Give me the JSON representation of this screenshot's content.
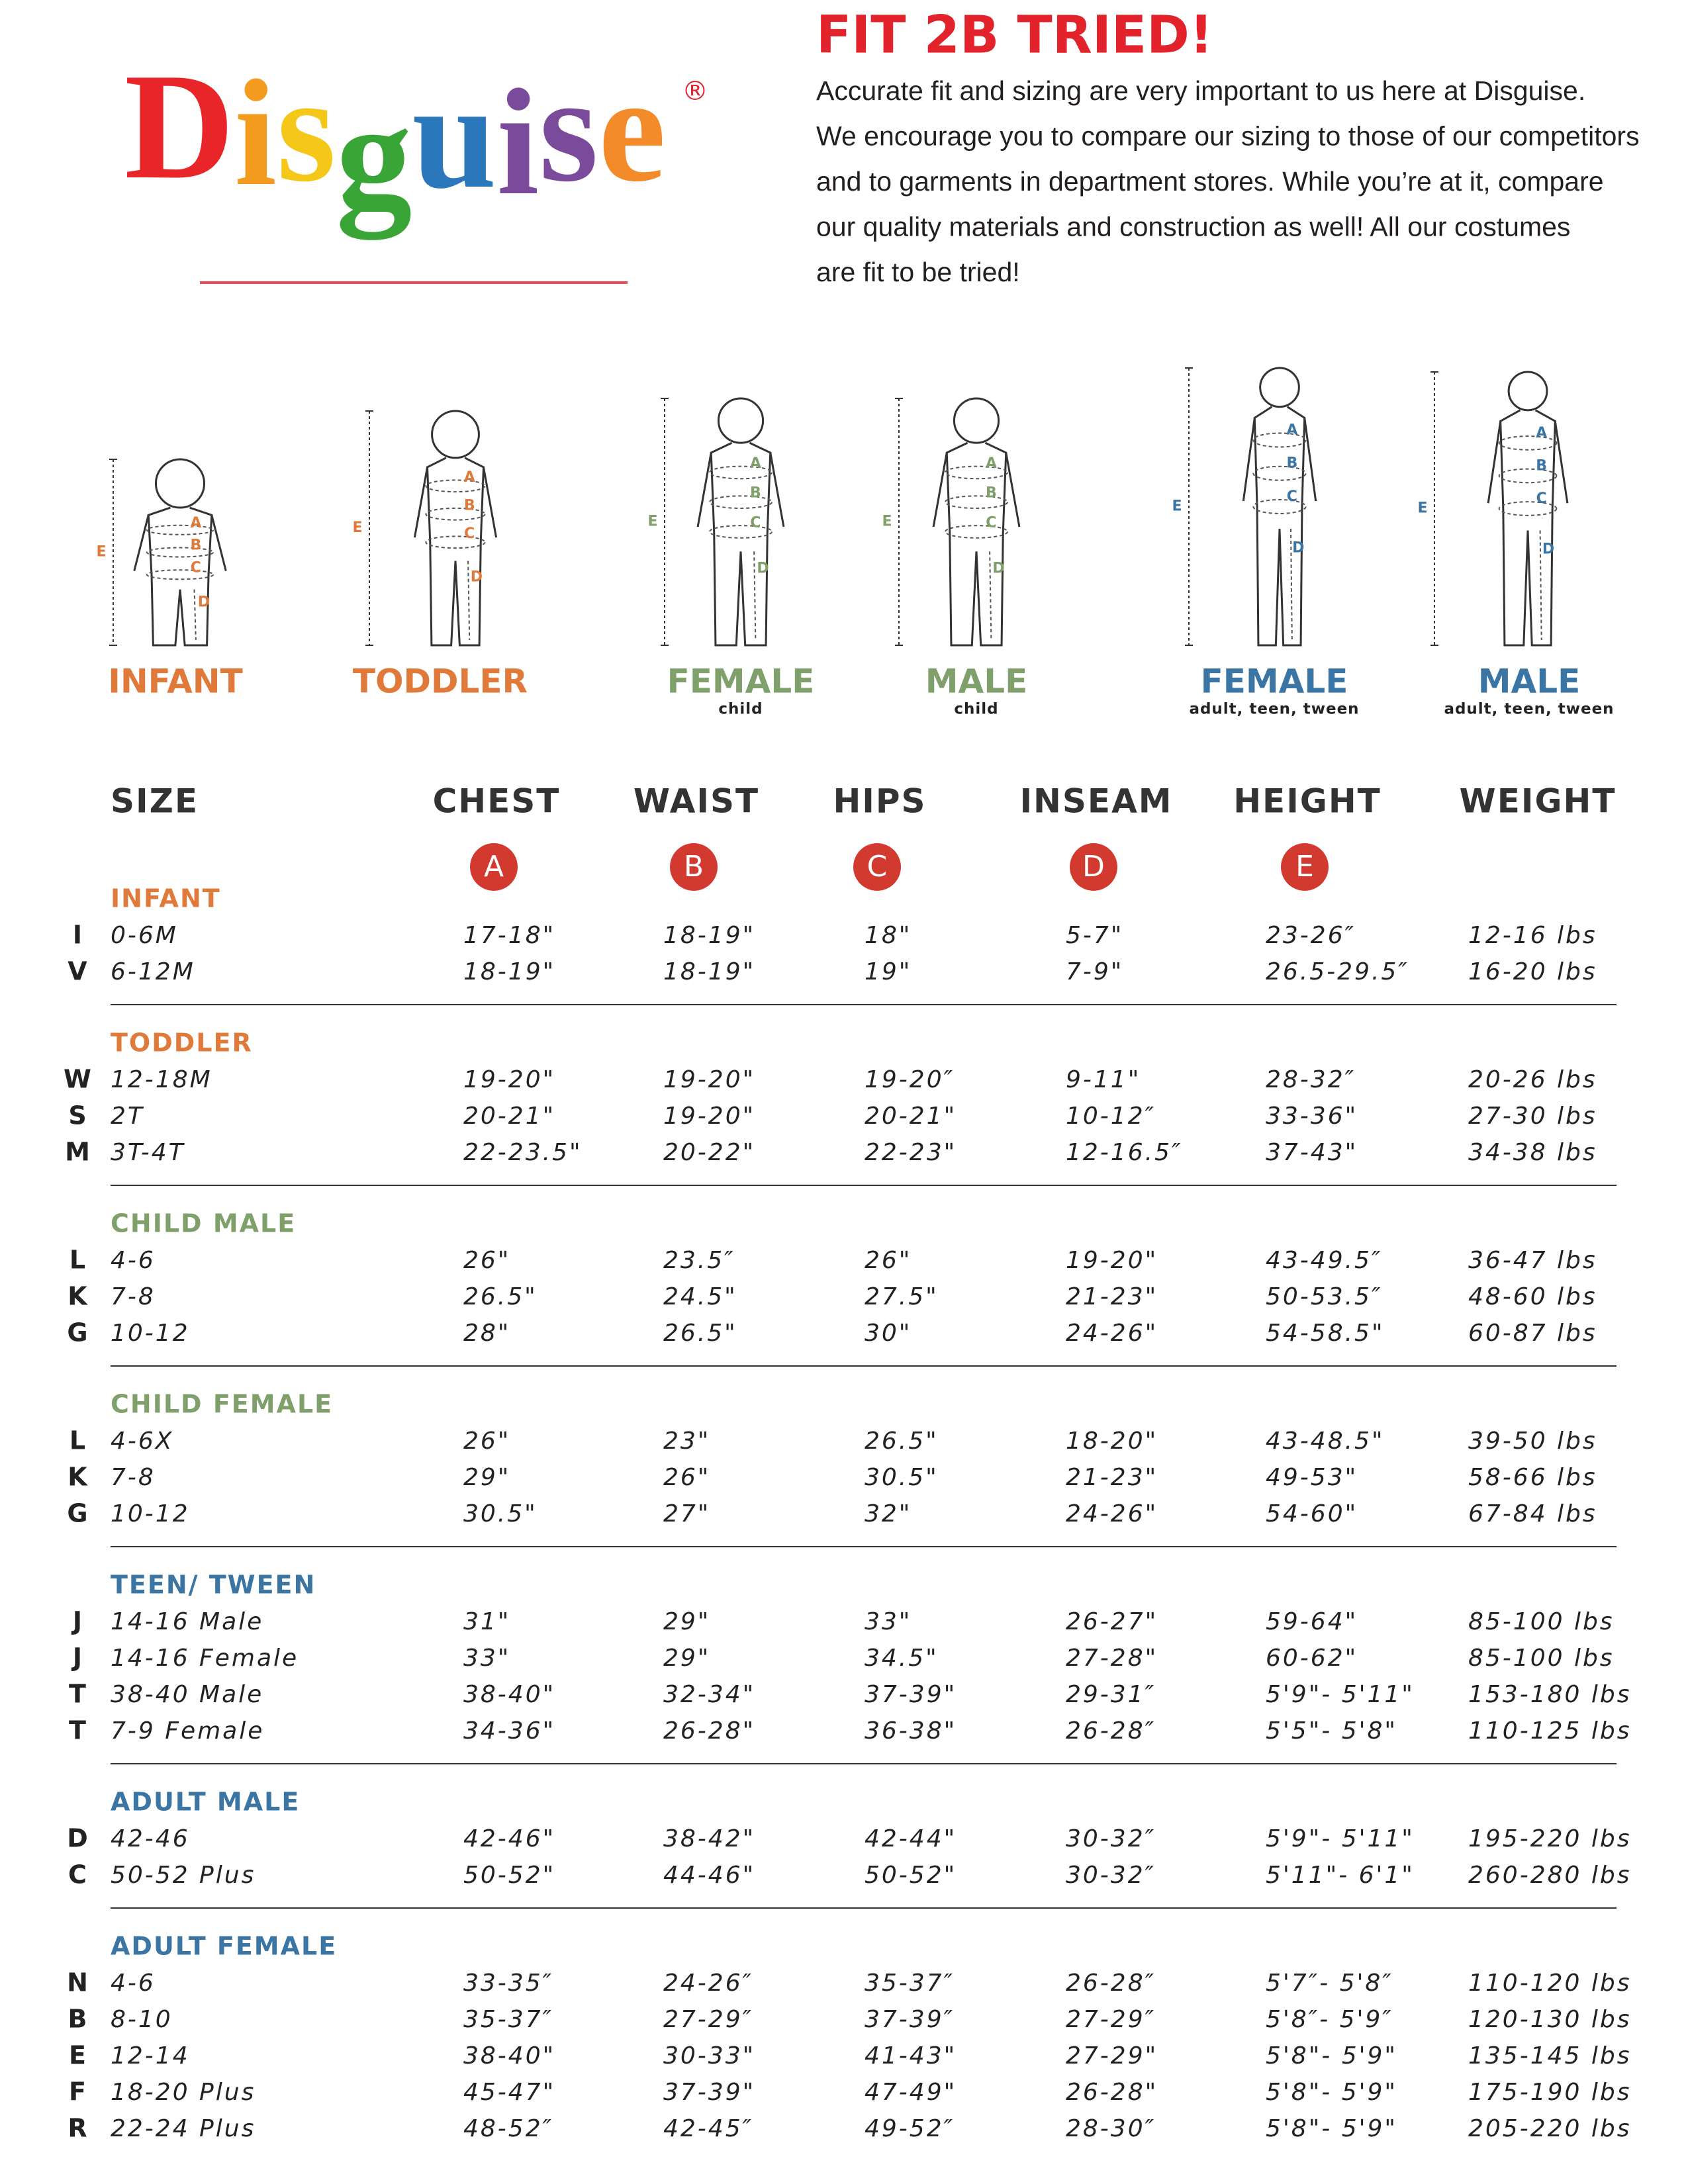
{
  "header": {
    "logo": "Disguise",
    "registered": "®",
    "title": "FIT 2B TRIED!",
    "paragraph": [
      "Accurate fit and sizing are very important to us here at Disguise.",
      "We encourage you to compare our sizing to those of our competitors",
      "and to garments in department stores. While you’re at it, compare",
      "our quality materials and construction as well! All our costumes",
      "are fit to be tried!"
    ]
  },
  "figures": [
    {
      "label": "INFANT",
      "letters": [
        "A",
        "B",
        "C",
        "D",
        "E"
      ]
    },
    {
      "label": "TODDLER",
      "letters": [
        "A",
        "B",
        "C",
        "D",
        "E"
      ]
    },
    {
      "label": "FEMALE",
      "sub": "child",
      "letters": [
        "A",
        "B",
        "C",
        "D",
        "E"
      ]
    },
    {
      "label": "MALE",
      "sub": "child",
      "letters": [
        "A",
        "B",
        "C",
        "D",
        "E"
      ]
    },
    {
      "label": "FEMALE",
      "sub": "adult, teen, tween",
      "letters": [
        "A",
        "B",
        "C",
        "D",
        "E"
      ]
    },
    {
      "label": "MALE",
      "sub": "adult, teen, tween",
      "letters": [
        "A",
        "B",
        "C",
        "D",
        "E"
      ]
    }
  ],
  "table": {
    "columns": [
      "SIZE",
      "CHEST",
      "WAIST",
      "HIPS",
      "INSEAM",
      "HEIGHT",
      "WEIGHT"
    ],
    "markers": [
      "A",
      "B",
      "C",
      "D",
      "E"
    ],
    "sections": [
      {
        "title": "INFANT",
        "rows": [
          [
            "I",
            "0-6M",
            "17-18\"",
            "18-19\"",
            "18\"",
            "5-7\"",
            "23-26″",
            "12-16 lbs"
          ],
          [
            "V",
            "6-12M",
            "18-19\"",
            "18-19\"",
            "19\"",
            "7-9\"",
            "26.5-29.5″",
            "16-20 lbs"
          ]
        ]
      },
      {
        "title": "TODDLER",
        "rows": [
          [
            "W",
            "12-18M",
            "19-20\"",
            "19-20\"",
            "19-20″",
            "9-11\"",
            "28-32″",
            "20-26 lbs"
          ],
          [
            "S",
            "2T",
            "20-21\"",
            "19-20\"",
            "20-21\"",
            "10-12″",
            "33-36\"",
            "27-30 lbs"
          ],
          [
            "M",
            "3T-4T",
            "22-23.5\"",
            "20-22\"",
            "22-23\"",
            "12-16.5″",
            "37-43\"",
            "34-38 lbs"
          ]
        ]
      },
      {
        "title": "CHILD MALE",
        "rows": [
          [
            "L",
            "4-6",
            "26\"",
            "23.5″",
            "26\"",
            "19-20\"",
            "43-49.5″",
            "36-47 lbs"
          ],
          [
            "K",
            "7-8",
            "26.5\"",
            "24.5\"",
            "27.5\"",
            "21-23\"",
            "50-53.5″",
            "48-60 lbs"
          ],
          [
            "G",
            "10-12",
            "28\"",
            "26.5\"",
            "30\"",
            "24-26\"",
            "54-58.5\"",
            "60-87 lbs"
          ]
        ]
      },
      {
        "title": "CHILD FEMALE",
        "rows": [
          [
            "L",
            "4-6X",
            "26\"",
            "23\"",
            "26.5\"",
            "18-20\"",
            "43-48.5\"",
            "39-50 lbs"
          ],
          [
            "K",
            "7-8",
            "29\"",
            "26\"",
            "30.5\"",
            "21-23\"",
            "49-53\"",
            "58-66 lbs"
          ],
          [
            "G",
            "10-12",
            "30.5\"",
            "27\"",
            "32\"",
            "24-26\"",
            "54-60\"",
            "67-84 lbs"
          ]
        ]
      },
      {
        "title": "TEEN/ TWEEN",
        "rows": [
          [
            "J",
            "14-16 Male",
            "31\"",
            "29\"",
            "33\"",
            "26-27\"",
            "59-64\"",
            "85-100 lbs"
          ],
          [
            "J",
            "14-16 Female",
            "33\"",
            "29\"",
            "34.5\"",
            "27-28\"",
            "60-62\"",
            "85-100 lbs"
          ],
          [
            "T",
            "38-40 Male",
            "38-40\"",
            "32-34\"",
            "37-39\"",
            "29-31″",
            "5'9\"- 5'11\"",
            "153-180 lbs"
          ],
          [
            "T",
            "7-9 Female",
            "34-36\"",
            "26-28\"",
            "36-38\"",
            "26-28″",
            "5'5\"- 5'8\"",
            "110-125 lbs"
          ]
        ]
      },
      {
        "title": "ADULT MALE",
        "rows": [
          [
            "D",
            "42-46",
            "42-46\"",
            "38-42\"",
            "42-44\"",
            "30-32″",
            "5'9\"- 5'11\"",
            "195-220 lbs"
          ],
          [
            "C",
            "50-52 Plus",
            "50-52\"",
            "44-46\"",
            "50-52\"",
            "30-32″",
            "5'11\"- 6'1\"",
            "260-280 lbs"
          ]
        ]
      },
      {
        "title": "ADULT FEMALE",
        "rows": [
          [
            "N",
            "4-6",
            "33-35″",
            "24-26″",
            "35-37″",
            "26-28″",
            "5'7″- 5'8″",
            "110-120 lbs"
          ],
          [
            "B",
            "8-10",
            "35-37″",
            "27-29″",
            "37-39″",
            "27-29″",
            "5'8″- 5'9″",
            "120-130 lbs"
          ],
          [
            "E",
            "12-14",
            "38-40\"",
            "30-33\"",
            "41-43\"",
            "27-29\"",
            "5'8\"- 5'9\"",
            "135-145 lbs"
          ],
          [
            "F",
            "18-20 Plus",
            "45-47\"",
            "37-39\"",
            "47-49\"",
            "26-28\"",
            "5'8\"- 5'9\"",
            "175-190 lbs"
          ],
          [
            "R",
            "22-24 Plus",
            "48-52″",
            "42-45″",
            "49-52″",
            "28-30″",
            "5'8\"- 5'9\"",
            "205-220 lbs"
          ]
        ]
      }
    ]
  }
}
